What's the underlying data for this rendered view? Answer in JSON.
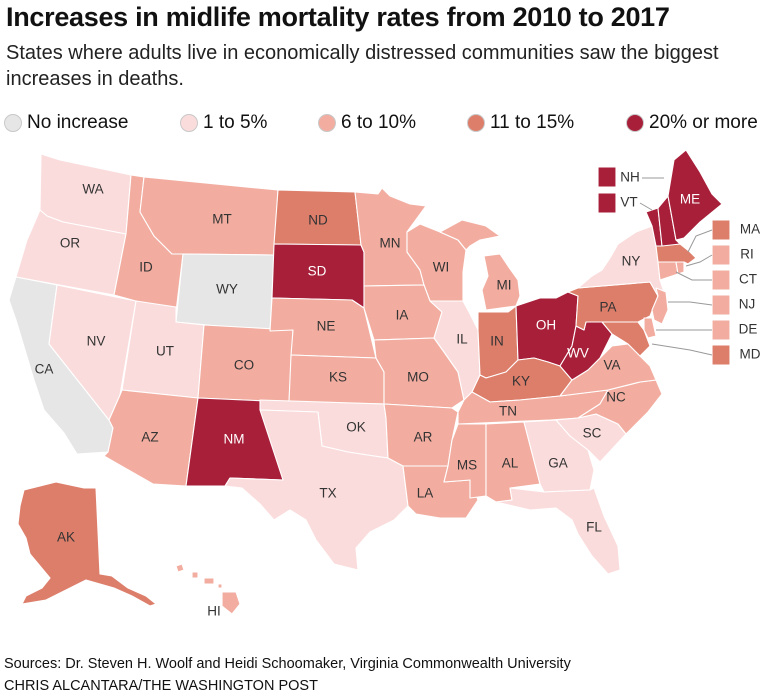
{
  "title": "Increases in midlife mortality rates from 2010 to 2017",
  "subtitle": "States where adults live in economically distressed communities saw the biggest increases in deaths.",
  "legend": [
    {
      "label": "No increase",
      "color": "#e6e6e6"
    },
    {
      "label": "1 to 5%",
      "color": "#fbdcdc"
    },
    {
      "label": "6 to 10%",
      "color": "#f2ada0"
    },
    {
      "label": "11 to 15%",
      "color": "#dd7e6b"
    },
    {
      "label": "20% or more",
      "color": "#a81f3a"
    }
  ],
  "states": {
    "WA": "1 to 5%",
    "OR": "1 to 5%",
    "CA": "No increase",
    "NV": "1 to 5%",
    "ID": "6 to 10%",
    "MT": "6 to 10%",
    "WY": "No increase",
    "UT": "1 to 5%",
    "AZ": "6 to 10%",
    "CO": "6 to 10%",
    "NM": "20% or more",
    "ND": "11 to 15%",
    "SD": "20% or more",
    "NE": "6 to 10%",
    "KS": "6 to 10%",
    "OK": "1 to 5%",
    "TX": "1 to 5%",
    "MN": "6 to 10%",
    "IA": "6 to 10%",
    "MO": "6 to 10%",
    "AR": "6 to 10%",
    "LA": "6 to 10%",
    "WI": "6 to 10%",
    "IL": "1 to 5%",
    "MI": "6 to 10%",
    "IN": "11 to 15%",
    "OH": "20% or more",
    "KY": "11 to 15%",
    "TN": "6 to 10%",
    "MS": "6 to 10%",
    "AL": "6 to 10%",
    "GA": "1 to 5%",
    "FL": "1 to 5%",
    "SC": "1 to 5%",
    "NC": "6 to 10%",
    "VA": "6 to 10%",
    "WV": "20% or more",
    "PA": "11 to 15%",
    "NY": "1 to 5%",
    "ME": "20% or more",
    "NH": "20% or more",
    "VT": "20% or more",
    "MA": "11 to 15%",
    "RI": "6 to 10%",
    "CT": "6 to 10%",
    "NJ": "6 to 10%",
    "DE": "6 to 10%",
    "MD": "11 to 15%",
    "AK": "11 to 15%",
    "HI": "6 to 10%"
  },
  "source": "Sources: Dr. Steven H. Woolf and Heidi Schoomaker, Virginia Commonwealth University",
  "credit": "CHRIS ALCANTARA/THE WASHINGTON POST"
}
